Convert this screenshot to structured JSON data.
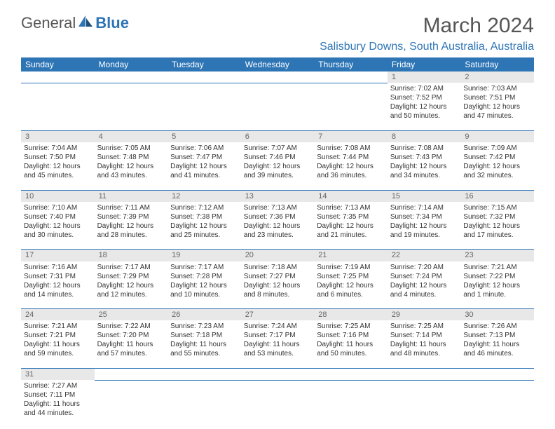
{
  "logo": {
    "part1": "General",
    "part2": "Blue"
  },
  "title": "March 2024",
  "location": "Salisbury Downs, South Australia, Australia",
  "colors": {
    "header_bg": "#2e75b6",
    "header_fg": "#ffffff",
    "daynum_bg": "#e8e8e8",
    "accent": "#2e75b6",
    "text": "#333333"
  },
  "fonts": {
    "title_size": 30,
    "location_size": 16,
    "dayhdr_size": 12,
    "cell_size": 10
  },
  "day_headers": [
    "Sunday",
    "Monday",
    "Tuesday",
    "Wednesday",
    "Thursday",
    "Friday",
    "Saturday"
  ],
  "weeks": [
    {
      "nums": [
        "",
        "",
        "",
        "",
        "",
        "1",
        "2"
      ],
      "cells": [
        null,
        null,
        null,
        null,
        null,
        {
          "sunrise": "Sunrise: 7:02 AM",
          "sunset": "Sunset: 7:52 PM",
          "day1": "Daylight: 12 hours",
          "day2": "and 50 minutes."
        },
        {
          "sunrise": "Sunrise: 7:03 AM",
          "sunset": "Sunset: 7:51 PM",
          "day1": "Daylight: 12 hours",
          "day2": "and 47 minutes."
        }
      ]
    },
    {
      "nums": [
        "3",
        "4",
        "5",
        "6",
        "7",
        "8",
        "9"
      ],
      "cells": [
        {
          "sunrise": "Sunrise: 7:04 AM",
          "sunset": "Sunset: 7:50 PM",
          "day1": "Daylight: 12 hours",
          "day2": "and 45 minutes."
        },
        {
          "sunrise": "Sunrise: 7:05 AM",
          "sunset": "Sunset: 7:48 PM",
          "day1": "Daylight: 12 hours",
          "day2": "and 43 minutes."
        },
        {
          "sunrise": "Sunrise: 7:06 AM",
          "sunset": "Sunset: 7:47 PM",
          "day1": "Daylight: 12 hours",
          "day2": "and 41 minutes."
        },
        {
          "sunrise": "Sunrise: 7:07 AM",
          "sunset": "Sunset: 7:46 PM",
          "day1": "Daylight: 12 hours",
          "day2": "and 39 minutes."
        },
        {
          "sunrise": "Sunrise: 7:08 AM",
          "sunset": "Sunset: 7:44 PM",
          "day1": "Daylight: 12 hours",
          "day2": "and 36 minutes."
        },
        {
          "sunrise": "Sunrise: 7:08 AM",
          "sunset": "Sunset: 7:43 PM",
          "day1": "Daylight: 12 hours",
          "day2": "and 34 minutes."
        },
        {
          "sunrise": "Sunrise: 7:09 AM",
          "sunset": "Sunset: 7:42 PM",
          "day1": "Daylight: 12 hours",
          "day2": "and 32 minutes."
        }
      ]
    },
    {
      "nums": [
        "10",
        "11",
        "12",
        "13",
        "14",
        "15",
        "16"
      ],
      "cells": [
        {
          "sunrise": "Sunrise: 7:10 AM",
          "sunset": "Sunset: 7:40 PM",
          "day1": "Daylight: 12 hours",
          "day2": "and 30 minutes."
        },
        {
          "sunrise": "Sunrise: 7:11 AM",
          "sunset": "Sunset: 7:39 PM",
          "day1": "Daylight: 12 hours",
          "day2": "and 28 minutes."
        },
        {
          "sunrise": "Sunrise: 7:12 AM",
          "sunset": "Sunset: 7:38 PM",
          "day1": "Daylight: 12 hours",
          "day2": "and 25 minutes."
        },
        {
          "sunrise": "Sunrise: 7:13 AM",
          "sunset": "Sunset: 7:36 PM",
          "day1": "Daylight: 12 hours",
          "day2": "and 23 minutes."
        },
        {
          "sunrise": "Sunrise: 7:13 AM",
          "sunset": "Sunset: 7:35 PM",
          "day1": "Daylight: 12 hours",
          "day2": "and 21 minutes."
        },
        {
          "sunrise": "Sunrise: 7:14 AM",
          "sunset": "Sunset: 7:34 PM",
          "day1": "Daylight: 12 hours",
          "day2": "and 19 minutes."
        },
        {
          "sunrise": "Sunrise: 7:15 AM",
          "sunset": "Sunset: 7:32 PM",
          "day1": "Daylight: 12 hours",
          "day2": "and 17 minutes."
        }
      ]
    },
    {
      "nums": [
        "17",
        "18",
        "19",
        "20",
        "21",
        "22",
        "23"
      ],
      "cells": [
        {
          "sunrise": "Sunrise: 7:16 AM",
          "sunset": "Sunset: 7:31 PM",
          "day1": "Daylight: 12 hours",
          "day2": "and 14 minutes."
        },
        {
          "sunrise": "Sunrise: 7:17 AM",
          "sunset": "Sunset: 7:29 PM",
          "day1": "Daylight: 12 hours",
          "day2": "and 12 minutes."
        },
        {
          "sunrise": "Sunrise: 7:17 AM",
          "sunset": "Sunset: 7:28 PM",
          "day1": "Daylight: 12 hours",
          "day2": "and 10 minutes."
        },
        {
          "sunrise": "Sunrise: 7:18 AM",
          "sunset": "Sunset: 7:27 PM",
          "day1": "Daylight: 12 hours",
          "day2": "and 8 minutes."
        },
        {
          "sunrise": "Sunrise: 7:19 AM",
          "sunset": "Sunset: 7:25 PM",
          "day1": "Daylight: 12 hours",
          "day2": "and 6 minutes."
        },
        {
          "sunrise": "Sunrise: 7:20 AM",
          "sunset": "Sunset: 7:24 PM",
          "day1": "Daylight: 12 hours",
          "day2": "and 4 minutes."
        },
        {
          "sunrise": "Sunrise: 7:21 AM",
          "sunset": "Sunset: 7:22 PM",
          "day1": "Daylight: 12 hours",
          "day2": "and 1 minute."
        }
      ]
    },
    {
      "nums": [
        "24",
        "25",
        "26",
        "27",
        "28",
        "29",
        "30"
      ],
      "cells": [
        {
          "sunrise": "Sunrise: 7:21 AM",
          "sunset": "Sunset: 7:21 PM",
          "day1": "Daylight: 11 hours",
          "day2": "and 59 minutes."
        },
        {
          "sunrise": "Sunrise: 7:22 AM",
          "sunset": "Sunset: 7:20 PM",
          "day1": "Daylight: 11 hours",
          "day2": "and 57 minutes."
        },
        {
          "sunrise": "Sunrise: 7:23 AM",
          "sunset": "Sunset: 7:18 PM",
          "day1": "Daylight: 11 hours",
          "day2": "and 55 minutes."
        },
        {
          "sunrise": "Sunrise: 7:24 AM",
          "sunset": "Sunset: 7:17 PM",
          "day1": "Daylight: 11 hours",
          "day2": "and 53 minutes."
        },
        {
          "sunrise": "Sunrise: 7:25 AM",
          "sunset": "Sunset: 7:16 PM",
          "day1": "Daylight: 11 hours",
          "day2": "and 50 minutes."
        },
        {
          "sunrise": "Sunrise: 7:25 AM",
          "sunset": "Sunset: 7:14 PM",
          "day1": "Daylight: 11 hours",
          "day2": "and 48 minutes."
        },
        {
          "sunrise": "Sunrise: 7:26 AM",
          "sunset": "Sunset: 7:13 PM",
          "day1": "Daylight: 11 hours",
          "day2": "and 46 minutes."
        }
      ]
    },
    {
      "nums": [
        "31",
        "",
        "",
        "",
        "",
        "",
        ""
      ],
      "cells": [
        {
          "sunrise": "Sunrise: 7:27 AM",
          "sunset": "Sunset: 7:11 PM",
          "day1": "Daylight: 11 hours",
          "day2": "and 44 minutes."
        },
        null,
        null,
        null,
        null,
        null,
        null
      ]
    }
  ]
}
